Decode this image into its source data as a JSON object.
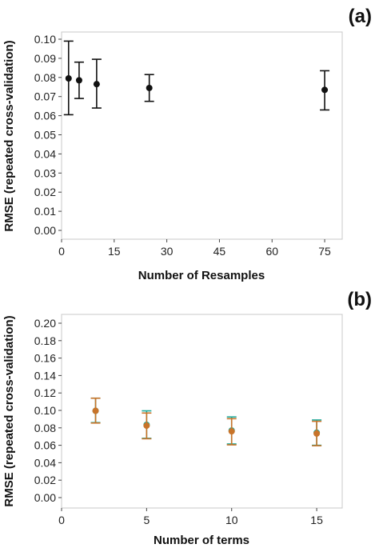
{
  "chart_data": [
    {
      "panel_label": "(a)",
      "type": "scatter",
      "error_bars": true,
      "xlabel": "Number of Resamples",
      "ylabel": "RMSE (repeated cross-validation)",
      "xlim": [
        0,
        80
      ],
      "ylim": [
        0,
        0.105
      ],
      "xticks": [
        0,
        15,
        30,
        45,
        60,
        75
      ],
      "yticks": [
        0.0,
        0.01,
        0.02,
        0.03,
        0.04,
        0.05,
        0.06,
        0.07,
        0.08,
        0.09,
        0.1
      ],
      "grid": false,
      "series": [
        {
          "color": "#111111",
          "points": [
            {
              "x": 2,
              "y": 0.0795,
              "low": 0.0605,
              "high": 0.099
            },
            {
              "x": 5,
              "y": 0.0785,
              "low": 0.069,
              "high": 0.088
            },
            {
              "x": 10,
              "y": 0.0765,
              "low": 0.064,
              "high": 0.0895
            },
            {
              "x": 25,
              "y": 0.0745,
              "low": 0.0675,
              "high": 0.0815
            },
            {
              "x": 75,
              "y": 0.0735,
              "low": 0.063,
              "high": 0.0835
            }
          ]
        }
      ]
    },
    {
      "panel_label": "(b)",
      "type": "scatter",
      "error_bars": true,
      "xlabel": "Number of terms",
      "ylabel": "RMSE (repeated cross-validation)",
      "xlim": [
        0,
        16.5
      ],
      "ylim": [
        0,
        0.205
      ],
      "xticks": [
        0,
        5,
        10,
        15
      ],
      "yticks": [
        0.0,
        0.02,
        0.04,
        0.06,
        0.08,
        0.1,
        0.12,
        0.14,
        0.16,
        0.18,
        0.2
      ],
      "grid": false,
      "series": [
        {
          "color": "#1fa99a",
          "points": [
            {
              "x": 2,
              "y": 0.0995,
              "low": 0.086,
              "high": 0.114
            },
            {
              "x": 5,
              "y": 0.0835,
              "low": 0.068,
              "high": 0.0995
            },
            {
              "x": 10,
              "y": 0.077,
              "low": 0.0615,
              "high": 0.0925
            },
            {
              "x": 15,
              "y": 0.0745,
              "low": 0.06,
              "high": 0.089
            }
          ]
        },
        {
          "color": "#c8742a",
          "points": [
            {
              "x": 2,
              "y": 0.0995,
              "low": 0.0855,
              "high": 0.114
            },
            {
              "x": 5,
              "y": 0.0825,
              "low": 0.0675,
              "high": 0.097
            },
            {
              "x": 10,
              "y": 0.076,
              "low": 0.0605,
              "high": 0.0905
            },
            {
              "x": 15,
              "y": 0.0735,
              "low": 0.0595,
              "high": 0.0875
            }
          ]
        }
      ]
    }
  ]
}
